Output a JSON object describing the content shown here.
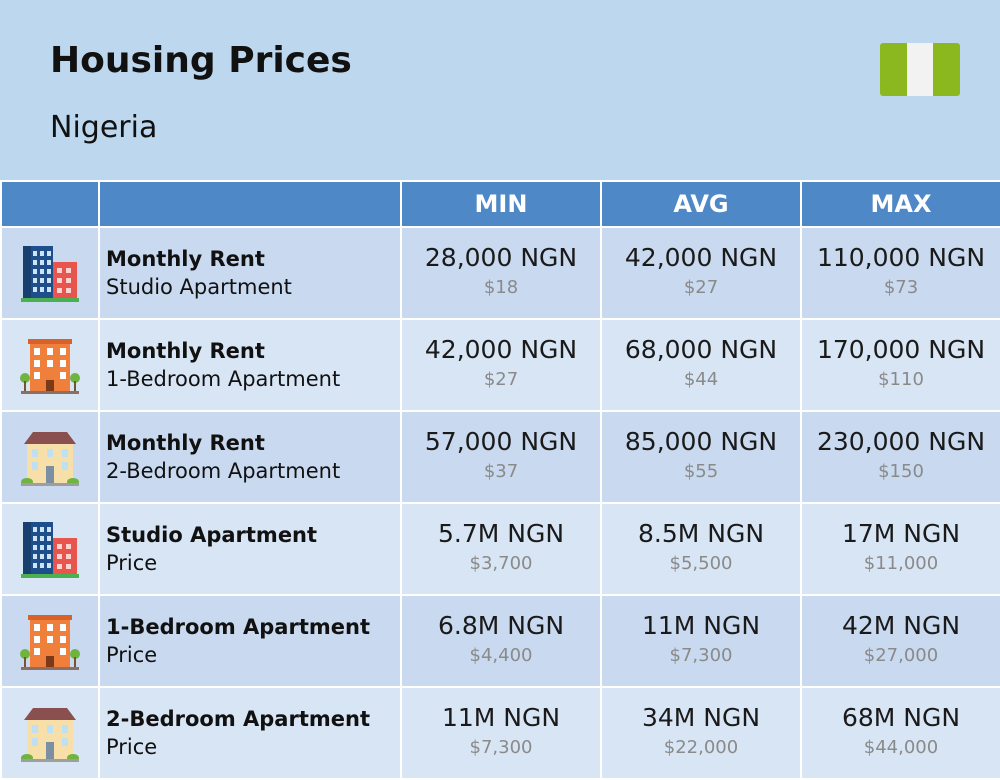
{
  "header": {
    "title": "Housing Prices",
    "subtitle": "Nigeria"
  },
  "flag": {
    "colors": [
      "#8cb81f",
      "#f2f2f2",
      "#8cb81f"
    ]
  },
  "columns": [
    "MIN",
    "AVG",
    "MAX"
  ],
  "colors": {
    "header_bg": "#bdd7ee",
    "column_header_bg": "#4f88c6",
    "row_odd": "#c9d9ef",
    "row_even": "#d8e5f4"
  },
  "chart_data": {
    "type": "table",
    "title": "Housing Prices",
    "subtitle": "Nigeria",
    "columns": [
      "MIN",
      "AVG",
      "MAX"
    ],
    "rows": [
      {
        "icon": "blue-building-icon",
        "label": "Monthly Rent",
        "sublabel": "Studio Apartment",
        "min": "28,000 NGN",
        "min_usd": "$18",
        "avg": "42,000 NGN",
        "avg_usd": "$27",
        "max": "110,000 NGN",
        "max_usd": "$73"
      },
      {
        "icon": "orange-building-icon",
        "label": "Monthly Rent",
        "sublabel": "1-Bedroom Apartment",
        "min": "42,000 NGN",
        "min_usd": "$27",
        "avg": "68,000 NGN",
        "avg_usd": "$44",
        "max": "170,000 NGN",
        "max_usd": "$110"
      },
      {
        "icon": "beige-house-icon",
        "label": "Monthly Rent",
        "sublabel": "2-Bedroom Apartment",
        "min": "57,000 NGN",
        "min_usd": "$37",
        "avg": "85,000 NGN",
        "avg_usd": "$55",
        "max": "230,000 NGN",
        "max_usd": "$150"
      },
      {
        "icon": "blue-building-icon",
        "label": "Studio Apartment",
        "sublabel": "Price",
        "min": "5.7M NGN",
        "min_usd": "$3,700",
        "avg": "8.5M NGN",
        "avg_usd": "$5,500",
        "max": "17M NGN",
        "max_usd": "$11,000"
      },
      {
        "icon": "orange-building-icon",
        "label": "1-Bedroom Apartment",
        "sublabel": "Price",
        "min": "6.8M NGN",
        "min_usd": "$4,400",
        "avg": "11M NGN",
        "avg_usd": "$7,300",
        "max": "42M NGN",
        "max_usd": "$27,000"
      },
      {
        "icon": "beige-house-icon",
        "label": "2-Bedroom Apartment",
        "sublabel": "Price",
        "min": "11M NGN",
        "min_usd": "$7,300",
        "avg": "34M NGN",
        "avg_usd": "$22,000",
        "max": "68M NGN",
        "max_usd": "$44,000"
      }
    ]
  }
}
